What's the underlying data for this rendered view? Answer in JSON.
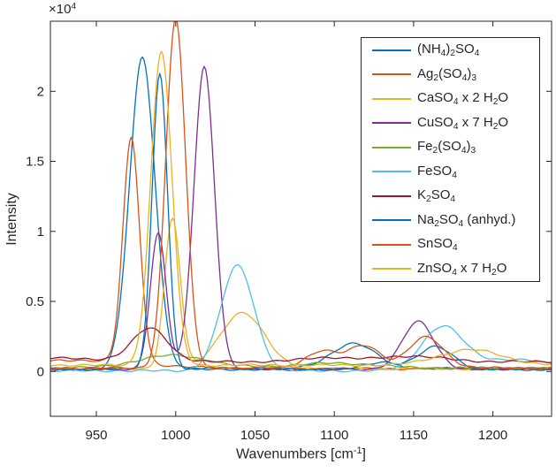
{
  "figure": {
    "background": "#ffffff",
    "axis_color": "#262626",
    "line_width": 1.3
  },
  "chart_data": {
    "type": "line",
    "title": "",
    "xlabel_plain": "Wavenumbers [cm^-1]",
    "xlabel_parts": [
      {
        "t": "Wavenumbers [cm"
      },
      {
        "t": "-1",
        "s": "sup"
      },
      {
        "t": "]"
      }
    ],
    "ylabel": "Intensity",
    "y_exponent_plain": "x10^4",
    "y_exponent_parts": [
      {
        "t": "×10"
      },
      {
        "t": "4",
        "s": "sup"
      }
    ],
    "xlim": [
      921,
      1237
    ],
    "ylim": [
      -0.32,
      2.5
    ],
    "y_unit_multiplier": "1e4",
    "x_tick_values": [
      950,
      1000,
      1050,
      1100,
      1150,
      1200
    ],
    "x_tick_labels": [
      "950",
      "1000",
      "1050",
      "1100",
      "1150",
      "1200"
    ],
    "y_tick_values": [
      0,
      0.5,
      1,
      1.5,
      2
    ],
    "y_tick_labels": [
      "0",
      "0.5",
      "1",
      "1.5",
      "2"
    ],
    "grid": false,
    "legend_position": "top-right",
    "peak_format": "[center_cm-1, amplitude_x1e4, sigma_cm-1]",
    "series": [
      {
        "name": "ammonium-sulfate",
        "label_plain": "(NH4)2SO4",
        "color": "#0072BD",
        "label_parts": [
          {
            "t": "(NH"
          },
          {
            "t": "4",
            "s": "sub"
          },
          {
            "t": ")"
          },
          {
            "t": "2",
            "s": "sub"
          },
          {
            "t": "SO"
          },
          {
            "t": "4",
            "s": "sub"
          }
        ],
        "baseline": 0.02,
        "peaks": [
          [
            979,
            2.22,
            8
          ],
          [
            1112,
            0.18,
            14
          ]
        ]
      },
      {
        "name": "silver-sulfate",
        "label_plain": "Ag2(SO4)3",
        "color": "#D95319",
        "label_parts": [
          {
            "t": "Ag"
          },
          {
            "t": "2",
            "s": "sub"
          },
          {
            "t": "(SO"
          },
          {
            "t": "4",
            "s": "sub"
          },
          {
            "t": ")"
          },
          {
            "t": "3",
            "s": "sub"
          }
        ],
        "baseline": 0.02,
        "peaks": [
          [
            940,
            0.06,
            40
          ],
          [
            972,
            1.6,
            5.2
          ]
        ]
      },
      {
        "name": "calcium-sulfate-dihydrate",
        "label_plain": "CaSO4 x 2 H2O",
        "color": "#EDB120",
        "label_parts": [
          {
            "t": "CaSO"
          },
          {
            "t": "4",
            "s": "sub"
          },
          {
            "t": " x 2 H"
          },
          {
            "t": "2",
            "s": "sub"
          },
          {
            "t": "O"
          }
        ],
        "baseline": 0.02,
        "peaks": [
          [
            998,
            1.07,
            5
          ],
          [
            1042,
            0.4,
            14
          ]
        ]
      },
      {
        "name": "copper-sulfate-heptahydrate",
        "label_plain": "CuSO4 x 7 H2O",
        "color": "#7E2F8E",
        "label_parts": [
          {
            "t": "CuSO"
          },
          {
            "t": "4",
            "s": "sub"
          },
          {
            "t": " x 7 H"
          },
          {
            "t": "2",
            "s": "sub"
          },
          {
            "t": "O"
          }
        ],
        "baseline": 0.015,
        "peaks": [
          [
            989,
            0.97,
            5
          ],
          [
            1018,
            2.16,
            6.5
          ],
          [
            1153,
            0.34,
            10
          ]
        ]
      },
      {
        "name": "iron-iii-sulfate",
        "label_plain": "Fe2(SO4)3",
        "color": "#77AC30",
        "label_parts": [
          {
            "t": "Fe"
          },
          {
            "t": "2",
            "s": "sub"
          },
          {
            "t": "(SO"
          },
          {
            "t": "4",
            "s": "sub"
          },
          {
            "t": ")"
          },
          {
            "t": "3",
            "s": "sub"
          }
        ],
        "baseline": 0.025,
        "peaks": [
          [
            998,
            0.09,
            22
          ],
          [
            1100,
            0.035,
            25
          ]
        ]
      },
      {
        "name": "iron-ii-sulfate",
        "label_plain": "FeSO4",
        "color": "#4DBEEE",
        "label_parts": [
          {
            "t": "FeSO"
          },
          {
            "t": "4",
            "s": "sub"
          }
        ],
        "baseline": 0.005,
        "peaks": [
          [
            1039,
            0.75,
            10.5
          ],
          [
            1168,
            0.3,
            13
          ],
          [
            1212,
            0.08,
            26
          ]
        ]
      },
      {
        "name": "potassium-sulfate",
        "label_plain": "K2SO4",
        "color": "#A2142F",
        "label_parts": [
          {
            "t": "K"
          },
          {
            "t": "2",
            "s": "sub"
          },
          {
            "t": "SO"
          },
          {
            "t": "4",
            "s": "sub"
          }
        ],
        "baseline": 0.07,
        "peaks": [
          [
            920,
            0.025,
            35
          ],
          [
            984,
            0.235,
            11
          ],
          [
            1095,
            0.03,
            15
          ],
          [
            1148,
            0.04,
            20
          ]
        ]
      },
      {
        "name": "sodium-sulfate-anhydrous",
        "label_plain": "Na2SO4 (anhyd.)",
        "color": "#0072BD",
        "label_parts": [
          {
            "t": "Na"
          },
          {
            "t": "2",
            "s": "sub"
          },
          {
            "t": "SO"
          },
          {
            "t": "4",
            "s": "sub"
          },
          {
            "t": " (anhyd.)"
          }
        ],
        "baseline": 0.015,
        "peaks": [
          [
            990,
            2.12,
            4.8
          ],
          [
            1130,
            0.05,
            10
          ],
          [
            1164,
            0.16,
            11
          ]
        ]
      },
      {
        "name": "tin-sulfate",
        "label_plain": "SnSO4",
        "color": "#D95319",
        "label_parts": [
          {
            "t": "SnSO"
          },
          {
            "t": "4",
            "s": "sub"
          }
        ],
        "baseline": 0.025,
        "peaks": [
          [
            1000,
            2.5,
            6.2
          ],
          [
            1092,
            0.12,
            10
          ],
          [
            1119,
            0.16,
            10
          ],
          [
            1158,
            0.22,
            11
          ]
        ]
      },
      {
        "name": "zinc-sulfate-heptahydrate",
        "label_plain": "ZnSO4 x 7 H2O",
        "color": "#EDB120",
        "label_parts": [
          {
            "t": "ZnSO"
          },
          {
            "t": "4",
            "s": "sub"
          },
          {
            "t": " x 7 H"
          },
          {
            "t": "2",
            "s": "sub"
          },
          {
            "t": "O"
          }
        ],
        "baseline": 0.045,
        "peaks": [
          [
            991,
            2.24,
            6.6
          ],
          [
            1186,
            0.11,
            20
          ]
        ]
      }
    ]
  }
}
